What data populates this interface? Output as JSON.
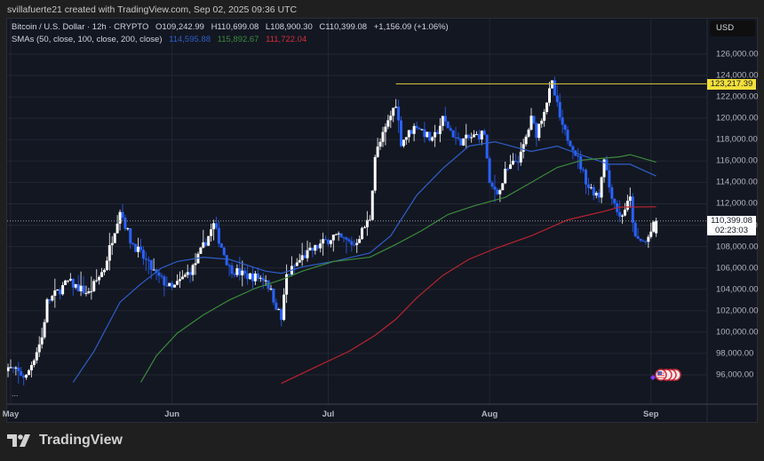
{
  "credit": "svillafuerte21 created with TradingView.com, Sep 02, 2025 09:36 UTC",
  "legend": {
    "symbol": "Bitcoin / U.S. Dollar · 12h · CRYPTO",
    "open": "O109,242.99",
    "high": "H110,699.08",
    "low": "L108,900.30",
    "close": "C110,399.08",
    "change": "+1,156.09 (+1.06%)",
    "sma_title": "SMAs (50, close, 100, close, 200, close)",
    "sma50": "114,595.88",
    "sma100": "115,892.67",
    "sma200": "111,722.04"
  },
  "currency": "USD",
  "horizontal_line_label": "123,217.39",
  "current_price_label": "110,399.08",
  "countdown": "02:23:03",
  "more_dots": "...",
  "brand": "TradingView",
  "colors": {
    "up": "#ffffff",
    "down": "#2962ff",
    "sma50": "#2f5ec9",
    "sma100": "#3c8a3c",
    "sma200": "#b8242f",
    "hline": "#c9b93a"
  },
  "chart_data": {
    "type": "candlestick",
    "interval": "12h",
    "ylim": [
      94500,
      127500
    ],
    "y_ticks": [
      "126,000.00",
      "124,000.00",
      "122,000.00",
      "120,000.00",
      "118,000.00",
      "116,000.00",
      "114,000.00",
      "112,000.00",
      "110,000.00",
      "108,000.00",
      "106,000.00",
      "104,000.00",
      "102,000.00",
      "100,000.00",
      "98,000.00",
      "96,000.00"
    ],
    "x_ticks": [
      {
        "date": "2025-05-01",
        "label": "May"
      },
      {
        "date": "2025-06-01",
        "label": "Jun"
      },
      {
        "date": "2025-07-01",
        "label": "Jul"
      },
      {
        "date": "2025-08-01",
        "label": "Aug"
      },
      {
        "date": "2025-09-01",
        "label": "Sep"
      }
    ],
    "grid": true,
    "last_candle": {
      "open": 109242.99,
      "high": 110699.08,
      "low": 108900.3,
      "close": 110399.08
    },
    "close_path": [
      [
        "2025-04-30",
        96800
      ],
      [
        "2025-05-04",
        95800
      ],
      [
        "2025-05-07",
        99500
      ],
      [
        "2025-05-08",
        102800
      ],
      [
        "2025-05-12",
        104700
      ],
      [
        "2025-05-16",
        103600
      ],
      [
        "2025-05-19",
        106000
      ],
      [
        "2025-05-22",
        111500
      ],
      [
        "2025-05-24",
        108600
      ],
      [
        "2025-05-29",
        105300
      ],
      [
        "2025-06-01",
        104000
      ],
      [
        "2025-06-05",
        106000
      ],
      [
        "2025-06-09",
        110000
      ],
      [
        "2025-06-12",
        106000
      ],
      [
        "2025-06-15",
        105300
      ],
      [
        "2025-06-19",
        105000
      ],
      [
        "2025-06-22",
        101200
      ],
      [
        "2025-06-23",
        105300
      ],
      [
        "2025-06-26",
        107000
      ],
      [
        "2025-07-02",
        109000
      ],
      [
        "2025-07-06",
        108200
      ],
      [
        "2025-07-09",
        110700
      ],
      [
        "2025-07-10",
        116500
      ],
      [
        "2025-07-14",
        121500
      ],
      [
        "2025-07-15",
        117800
      ],
      [
        "2025-07-18",
        119400
      ],
      [
        "2025-07-21",
        117800
      ],
      [
        "2025-07-23",
        119900
      ],
      [
        "2025-07-26",
        117800
      ],
      [
        "2025-07-31",
        118600
      ],
      [
        "2025-08-01",
        113600
      ],
      [
        "2025-08-03",
        113200
      ],
      [
        "2025-08-04",
        114900
      ],
      [
        "2025-08-07",
        116500
      ],
      [
        "2025-08-09",
        119900
      ],
      [
        "2025-08-10",
        118600
      ],
      [
        "2025-08-13",
        123200
      ],
      [
        "2025-08-15",
        119000
      ],
      [
        "2025-08-17",
        117400
      ],
      [
        "2025-08-20",
        113600
      ],
      [
        "2025-08-22",
        112800
      ],
      [
        "2025-08-23",
        116500
      ],
      [
        "2025-08-24",
        113600
      ],
      [
        "2025-08-26",
        110700
      ],
      [
        "2025-08-28",
        112400
      ],
      [
        "2025-08-29",
        108600
      ],
      [
        "2025-08-31",
        108400
      ],
      [
        "2025-09-02",
        110399.08
      ]
    ],
    "series": [
      {
        "name": "SMA 50",
        "color": "#2f5ec9",
        "points": [
          [
            "2025-05-13",
            95300
          ],
          [
            "2025-05-17",
            98200
          ],
          [
            "2025-05-22",
            102800
          ],
          [
            "2025-05-26",
            104500
          ],
          [
            "2025-05-30",
            106000
          ],
          [
            "2025-06-02",
            106600
          ],
          [
            "2025-06-07",
            107000
          ],
          [
            "2025-06-12",
            106800
          ],
          [
            "2025-06-19",
            105700
          ],
          [
            "2025-06-22",
            105500
          ],
          [
            "2025-06-26",
            106100
          ],
          [
            "2025-07-02",
            106600
          ],
          [
            "2025-07-09",
            107400
          ],
          [
            "2025-07-13",
            109000
          ],
          [
            "2025-07-18",
            112800
          ],
          [
            "2025-07-23",
            115300
          ],
          [
            "2025-07-28",
            117400
          ],
          [
            "2025-08-02",
            117800
          ],
          [
            "2025-08-09",
            116900
          ],
          [
            "2025-08-14",
            117400
          ],
          [
            "2025-08-19",
            116500
          ],
          [
            "2025-08-24",
            115700
          ],
          [
            "2025-08-28",
            115700
          ],
          [
            "2025-09-02",
            114595.88
          ]
        ]
      },
      {
        "name": "SMA 100",
        "color": "#3c8a3c",
        "points": [
          [
            "2025-05-26",
            95300
          ],
          [
            "2025-05-29",
            97800
          ],
          [
            "2025-06-02",
            99900
          ],
          [
            "2025-06-07",
            101600
          ],
          [
            "2025-06-12",
            103000
          ],
          [
            "2025-06-17",
            104100
          ],
          [
            "2025-06-22",
            104900
          ],
          [
            "2025-06-26",
            105700
          ],
          [
            "2025-07-02",
            106600
          ],
          [
            "2025-07-09",
            107000
          ],
          [
            "2025-07-14",
            108200
          ],
          [
            "2025-07-19",
            109500
          ],
          [
            "2025-07-24",
            111000
          ],
          [
            "2025-07-29",
            111800
          ],
          [
            "2025-08-04",
            112600
          ],
          [
            "2025-08-09",
            114000
          ],
          [
            "2025-08-14",
            115400
          ],
          [
            "2025-08-19",
            116100
          ],
          [
            "2025-08-26",
            116400
          ],
          [
            "2025-08-28",
            116600
          ],
          [
            "2025-09-02",
            115892.67
          ]
        ]
      },
      {
        "name": "SMA 200",
        "color": "#b8242f",
        "points": [
          [
            "2025-06-22",
            95200
          ],
          [
            "2025-06-28",
            96600
          ],
          [
            "2025-07-05",
            98200
          ],
          [
            "2025-07-10",
            99700
          ],
          [
            "2025-07-14",
            101200
          ],
          [
            "2025-07-18",
            103200
          ],
          [
            "2025-07-23",
            105300
          ],
          [
            "2025-07-28",
            106800
          ],
          [
            "2025-08-02",
            107800
          ],
          [
            "2025-08-09",
            109000
          ],
          [
            "2025-08-16",
            110500
          ],
          [
            "2025-08-23",
            111300
          ],
          [
            "2025-08-26",
            111700
          ],
          [
            "2025-09-02",
            111722.04
          ]
        ]
      }
    ],
    "horizontal_line": {
      "price": 123217.39,
      "from": "2025-07-14"
    },
    "current_price": 110399.08
  }
}
